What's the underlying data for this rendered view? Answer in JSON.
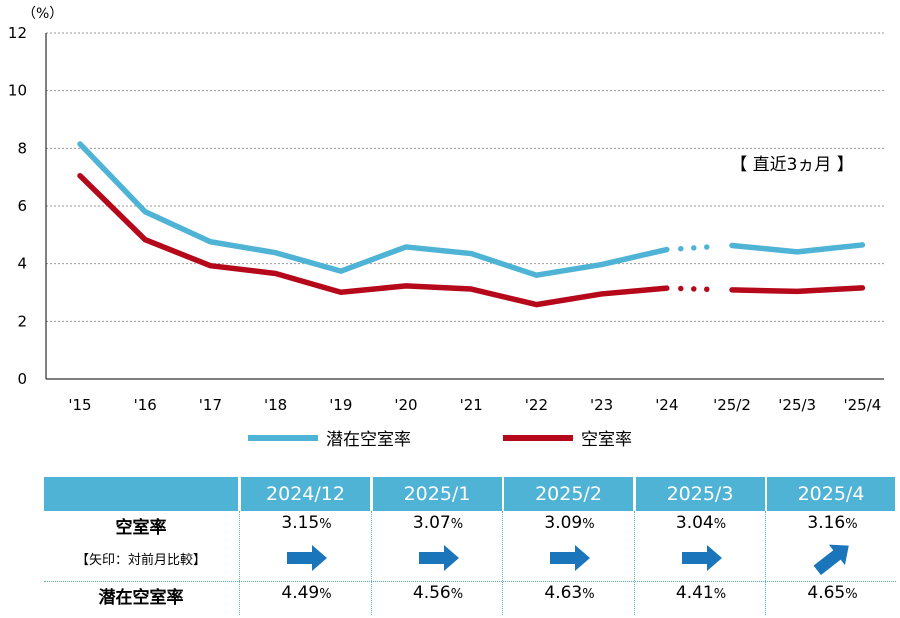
{
  "chart_data": {
    "type": "line",
    "y_unit": "（%）",
    "ylim": [
      0,
      12
    ],
    "yticks": [
      0,
      2,
      4,
      6,
      8,
      10,
      12
    ],
    "categories": [
      "'15",
      "'16",
      "'17",
      "'18",
      "'19",
      "'20",
      "'21",
      "'22",
      "'23",
      "'24",
      "'25/2",
      "'25/3",
      "'25/4"
    ],
    "annotation": "【 直近3ヵ月 】",
    "grid": true,
    "legend_position": "bottom",
    "series": [
      {
        "name": "潜在空室率",
        "color": "#4fb3d6",
        "values": [
          8.15,
          5.8,
          4.76,
          4.38,
          3.74,
          4.58,
          4.35,
          3.6,
          3.97,
          4.49,
          4.63,
          4.41,
          4.65
        ]
      },
      {
        "name": "空室率",
        "color": "#b5091b",
        "values": [
          7.05,
          4.83,
          3.93,
          3.66,
          3.01,
          3.23,
          3.12,
          2.58,
          2.95,
          3.15,
          3.09,
          3.04,
          3.16
        ]
      }
    ]
  },
  "table": {
    "headers": [
      "2024/12",
      "2025/1",
      "2025/2",
      "2025/3",
      "2025/4"
    ],
    "vacancy_label": "空室率",
    "arrow_note": "【矢印：対前月比較】",
    "potential_label": "潜在空室率",
    "vacancy_values": [
      "3.15",
      "3.07",
      "3.09",
      "3.04",
      "3.16"
    ],
    "potential_values": [
      "4.49",
      "4.56",
      "4.63",
      "4.41",
      "4.65"
    ],
    "unit": "%",
    "arrows": [
      "right",
      "right",
      "right",
      "right",
      "up-right"
    ],
    "arrow_color": "#1a75bb"
  }
}
